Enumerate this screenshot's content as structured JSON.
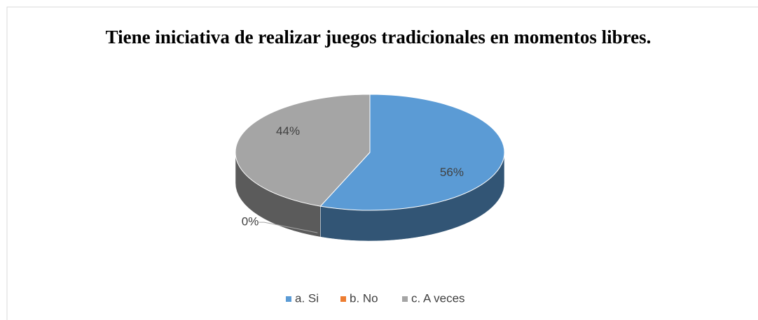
{
  "chart_data": {
    "type": "pie",
    "title": "Tiene iniciativa de realizar juegos tradicionales en momentos libres.",
    "categories": [
      "a. Si",
      "b. No",
      "c. A veces"
    ],
    "values": [
      56,
      0,
      44
    ],
    "value_labels": [
      "56%",
      "0%",
      "44%"
    ],
    "colors": [
      "#5b9bd5",
      "#ed7d31",
      "#a5a5a5"
    ],
    "legend": "bottom"
  }
}
